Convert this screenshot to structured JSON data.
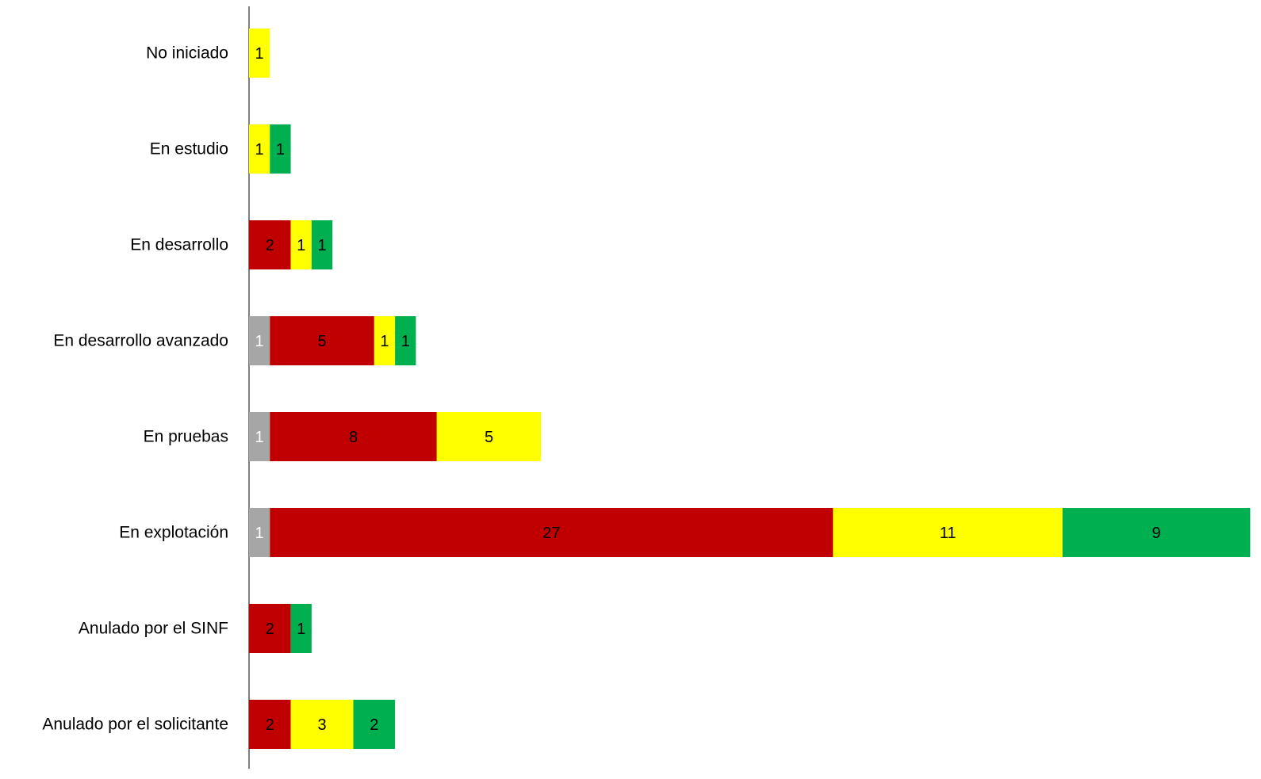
{
  "chart_data": {
    "type": "bar",
    "orientation": "horizontal",
    "stacked": true,
    "title": "",
    "xlabel": "",
    "ylabel": "",
    "xlim": [
      0,
      48
    ],
    "grid": false,
    "legend": "none",
    "categories": [
      "No iniciado",
      "En estudio",
      "En desarrollo",
      "En desarrollo avanzado",
      "En pruebas",
      "En explotación",
      "Anulado por el SINF",
      "Anulado por el solicitante"
    ],
    "series": [
      {
        "color": "#a6a6a6",
        "label_color": "#ffffff",
        "values": [
          0,
          0,
          0,
          1,
          1,
          1,
          0,
          0
        ]
      },
      {
        "color": "#c00000",
        "label_color": "#000000",
        "values": [
          0,
          0,
          2,
          5,
          8,
          27,
          2,
          2
        ]
      },
      {
        "color": "#ffff00",
        "label_color": "#000000",
        "values": [
          1,
          1,
          1,
          1,
          5,
          11,
          0,
          3
        ]
      },
      {
        "color": "#00b050",
        "label_color": "#000000",
        "values": [
          0,
          1,
          1,
          1,
          0,
          9,
          1,
          2
        ]
      }
    ]
  }
}
